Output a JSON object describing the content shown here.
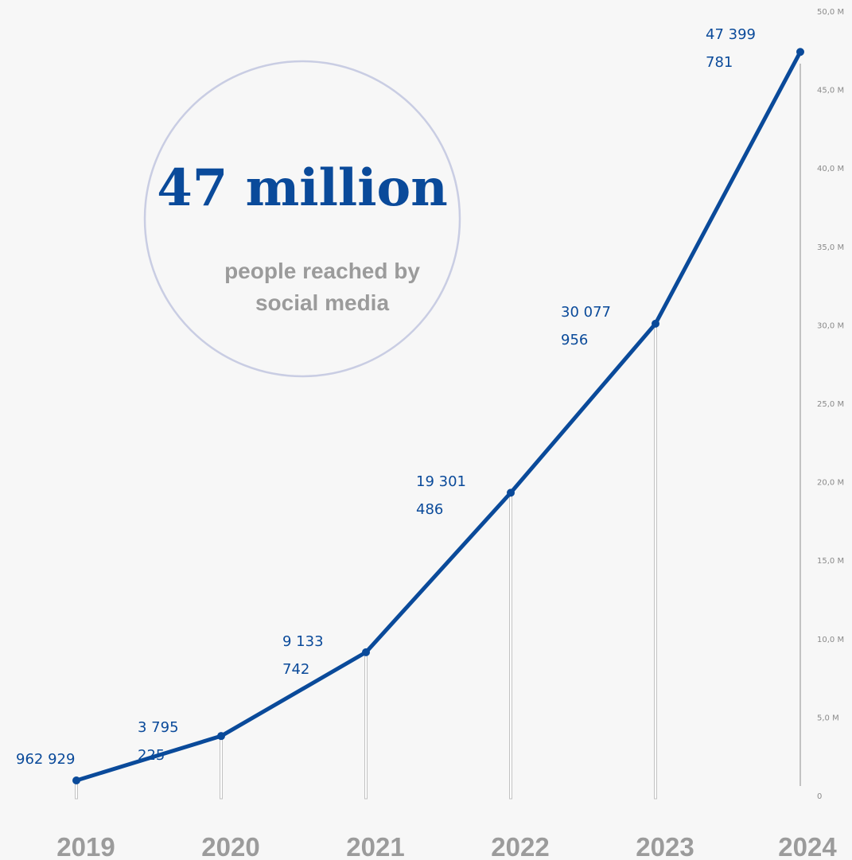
{
  "headline": {
    "value": "47 million",
    "subtitle_line1": "people reached by",
    "subtitle_line2": "social media"
  },
  "colors": {
    "line": "#0a4a9a",
    "circle_stroke": "#c9cde3",
    "drop_line": "#c2c2c2",
    "axis_text": "#8a8a8a",
    "year_text": "#9b9b9b",
    "background": "#f7f7f7"
  },
  "chart_data": {
    "type": "line",
    "x": [
      "2019",
      "2020",
      "2021",
      "2022",
      "2023",
      "2024"
    ],
    "series": [
      {
        "values": [
          962929,
          3795225,
          9133742,
          19301486,
          30077956,
          47399781
        ],
        "labels": [
          [
            "962 929"
          ],
          [
            "3 795",
            "225"
          ],
          [
            "9 133",
            "742"
          ],
          [
            "19 301",
            "486"
          ],
          [
            "30 077",
            "956"
          ],
          [
            "47 399",
            "781"
          ]
        ]
      }
    ],
    "ylim": [
      0,
      50000000
    ],
    "y_ticks": [
      0,
      5000000,
      10000000,
      15000000,
      20000000,
      25000000,
      30000000,
      35000000,
      40000000,
      45000000,
      50000000
    ],
    "y_tick_labels": [
      "0",
      "5,0 M",
      "10,0 M",
      "15,0 M",
      "20,0 M",
      "25,0 M",
      "30,0 M",
      "35,0 M",
      "40,0 M",
      "45,0 M",
      "50,0 M"
    ],
    "y_axis_position": "right",
    "grid": false,
    "legend": "none",
    "title": "",
    "xlabel": "",
    "ylabel": ""
  }
}
